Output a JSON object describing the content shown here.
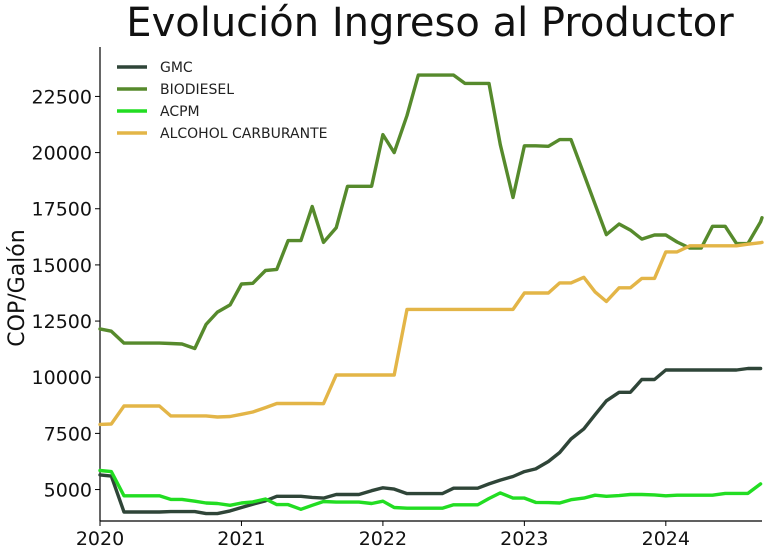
{
  "chart_data": {
    "type": "line",
    "title": "Evolución Ingreso al Productor",
    "xlabel": "",
    "ylabel": "COP/Galón",
    "xlim": [
      2020.0,
      2024.68
    ],
    "ylim": [
      3600,
      24700
    ],
    "x_ticks": [
      {
        "value": 2020,
        "label": "2020"
      },
      {
        "value": 2021,
        "label": "2021"
      },
      {
        "value": 2022,
        "label": "2022"
      },
      {
        "value": 2023,
        "label": "2023"
      },
      {
        "value": 2024,
        "label": "2024"
      }
    ],
    "y_ticks": [
      {
        "value": 5000,
        "label": "5000"
      },
      {
        "value": 7500,
        "label": "7500"
      },
      {
        "value": 10000,
        "label": "10000"
      },
      {
        "value": 12500,
        "label": "12500"
      },
      {
        "value": 15000,
        "label": "15000"
      },
      {
        "value": 17500,
        "label": "17500"
      },
      {
        "value": 20000,
        "label": "20000"
      },
      {
        "value": 22500,
        "label": "22500"
      }
    ],
    "grid": false,
    "legend_position": "top-left",
    "series": [
      {
        "name": "GMC",
        "color": "#2f4538",
        "points": [
          [
            2020.0,
            5650
          ],
          [
            2020.08,
            5600
          ],
          [
            2020.17,
            4000
          ],
          [
            2020.25,
            4000
          ],
          [
            2020.33,
            4000
          ],
          [
            2020.42,
            4000
          ],
          [
            2020.5,
            4020
          ],
          [
            2020.58,
            4020
          ],
          [
            2020.67,
            4020
          ],
          [
            2020.75,
            3930
          ],
          [
            2020.83,
            3930
          ],
          [
            2020.92,
            4050
          ],
          [
            2021.0,
            4200
          ],
          [
            2021.08,
            4350
          ],
          [
            2021.17,
            4500
          ],
          [
            2021.25,
            4700
          ],
          [
            2021.33,
            4700
          ],
          [
            2021.42,
            4700
          ],
          [
            2021.5,
            4650
          ],
          [
            2021.58,
            4620
          ],
          [
            2021.67,
            4780
          ],
          [
            2021.75,
            4780
          ],
          [
            2021.83,
            4780
          ],
          [
            2021.92,
            4950
          ],
          [
            2022.0,
            5080
          ],
          [
            2022.08,
            5020
          ],
          [
            2022.17,
            4820
          ],
          [
            2022.25,
            4820
          ],
          [
            2022.33,
            4820
          ],
          [
            2022.42,
            4820
          ],
          [
            2022.5,
            5060
          ],
          [
            2022.58,
            5060
          ],
          [
            2022.67,
            5060
          ],
          [
            2022.75,
            5250
          ],
          [
            2022.83,
            5420
          ],
          [
            2022.92,
            5580
          ],
          [
            2023.0,
            5800
          ],
          [
            2023.08,
            5920
          ],
          [
            2023.17,
            6250
          ],
          [
            2023.25,
            6650
          ],
          [
            2023.33,
            7250
          ],
          [
            2023.42,
            7700
          ],
          [
            2023.5,
            8330
          ],
          [
            2023.58,
            8950
          ],
          [
            2023.67,
            9330
          ],
          [
            2023.75,
            9330
          ],
          [
            2023.83,
            9900
          ],
          [
            2023.92,
            9900
          ],
          [
            2024.0,
            10320
          ],
          [
            2024.08,
            10320
          ],
          [
            2024.17,
            10320
          ],
          [
            2024.25,
            10320
          ],
          [
            2024.33,
            10320
          ],
          [
            2024.42,
            10320
          ],
          [
            2024.5,
            10320
          ],
          [
            2024.58,
            10390
          ],
          [
            2024.67,
            10390
          ]
        ]
      },
      {
        "name": "BIODIESEL",
        "color": "#568a2c",
        "points": [
          [
            2020.0,
            12150
          ],
          [
            2020.08,
            12050
          ],
          [
            2020.17,
            11520
          ],
          [
            2020.25,
            11520
          ],
          [
            2020.33,
            11520
          ],
          [
            2020.42,
            11520
          ],
          [
            2020.5,
            11500
          ],
          [
            2020.58,
            11480
          ],
          [
            2020.67,
            11280
          ],
          [
            2020.75,
            12350
          ],
          [
            2020.83,
            12900
          ],
          [
            2020.92,
            13220
          ],
          [
            2021.0,
            14150
          ],
          [
            2021.08,
            14180
          ],
          [
            2021.17,
            14750
          ],
          [
            2021.25,
            14800
          ],
          [
            2021.33,
            16080
          ],
          [
            2021.42,
            16080
          ],
          [
            2021.5,
            17600
          ],
          [
            2021.58,
            16000
          ],
          [
            2021.67,
            16650
          ],
          [
            2021.75,
            18500
          ],
          [
            2021.83,
            18500
          ],
          [
            2021.92,
            18500
          ],
          [
            2022.0,
            20800
          ],
          [
            2022.08,
            20000
          ],
          [
            2022.17,
            21650
          ],
          [
            2022.25,
            23450
          ],
          [
            2022.33,
            23450
          ],
          [
            2022.42,
            23450
          ],
          [
            2022.5,
            23450
          ],
          [
            2022.58,
            23080
          ],
          [
            2022.67,
            23080
          ],
          [
            2022.75,
            23080
          ],
          [
            2022.83,
            20350
          ],
          [
            2022.92,
            18000
          ],
          [
            2023.0,
            20300
          ],
          [
            2023.08,
            20300
          ],
          [
            2023.17,
            20280
          ],
          [
            2023.25,
            20580
          ],
          [
            2023.33,
            20580
          ],
          [
            2023.42,
            19050
          ],
          [
            2023.5,
            17700
          ],
          [
            2023.58,
            16350
          ],
          [
            2023.67,
            16820
          ],
          [
            2023.75,
            16550
          ],
          [
            2023.83,
            16150
          ],
          [
            2023.92,
            16330
          ],
          [
            2024.0,
            16330
          ],
          [
            2024.08,
            16020
          ],
          [
            2024.17,
            15750
          ],
          [
            2024.25,
            15750
          ],
          [
            2024.33,
            16720
          ],
          [
            2024.42,
            16720
          ],
          [
            2024.5,
            15950
          ],
          [
            2024.58,
            15950
          ],
          [
            2024.67,
            16920
          ],
          [
            2024.75,
            17100
          ]
        ]
      },
      {
        "name": "ACPM",
        "color": "#22dd22",
        "points": [
          [
            2020.0,
            5850
          ],
          [
            2020.08,
            5800
          ],
          [
            2020.17,
            4720
          ],
          [
            2020.25,
            4720
          ],
          [
            2020.33,
            4720
          ],
          [
            2020.42,
            4720
          ],
          [
            2020.5,
            4560
          ],
          [
            2020.58,
            4560
          ],
          [
            2020.67,
            4480
          ],
          [
            2020.75,
            4400
          ],
          [
            2020.83,
            4380
          ],
          [
            2020.92,
            4300
          ],
          [
            2021.0,
            4400
          ],
          [
            2021.08,
            4450
          ],
          [
            2021.17,
            4580
          ],
          [
            2021.25,
            4330
          ],
          [
            2021.33,
            4330
          ],
          [
            2021.42,
            4120
          ],
          [
            2021.5,
            4300
          ],
          [
            2021.58,
            4470
          ],
          [
            2021.67,
            4440
          ],
          [
            2021.75,
            4440
          ],
          [
            2021.83,
            4440
          ],
          [
            2021.92,
            4380
          ],
          [
            2022.0,
            4480
          ],
          [
            2022.08,
            4200
          ],
          [
            2022.17,
            4170
          ],
          [
            2022.25,
            4170
          ],
          [
            2022.33,
            4170
          ],
          [
            2022.42,
            4170
          ],
          [
            2022.5,
            4320
          ],
          [
            2022.58,
            4320
          ],
          [
            2022.67,
            4320
          ],
          [
            2022.75,
            4600
          ],
          [
            2022.83,
            4850
          ],
          [
            2022.92,
            4620
          ],
          [
            2023.0,
            4620
          ],
          [
            2023.08,
            4430
          ],
          [
            2023.17,
            4420
          ],
          [
            2023.25,
            4400
          ],
          [
            2023.33,
            4550
          ],
          [
            2023.42,
            4620
          ],
          [
            2023.5,
            4750
          ],
          [
            2023.58,
            4700
          ],
          [
            2023.67,
            4730
          ],
          [
            2023.75,
            4780
          ],
          [
            2023.83,
            4780
          ],
          [
            2023.92,
            4760
          ],
          [
            2024.0,
            4720
          ],
          [
            2024.08,
            4750
          ],
          [
            2024.17,
            4750
          ],
          [
            2024.25,
            4750
          ],
          [
            2024.33,
            4750
          ],
          [
            2024.42,
            4830
          ],
          [
            2024.5,
            4830
          ],
          [
            2024.58,
            4830
          ],
          [
            2024.67,
            5250
          ]
        ]
      },
      {
        "name": "ALCOHOL CARBURANTE",
        "color": "#e3b547",
        "points": [
          [
            2020.0,
            7900
          ],
          [
            2020.08,
            7920
          ],
          [
            2020.17,
            8720
          ],
          [
            2020.25,
            8720
          ],
          [
            2020.33,
            8720
          ],
          [
            2020.42,
            8720
          ],
          [
            2020.5,
            8280
          ],
          [
            2020.58,
            8280
          ],
          [
            2020.67,
            8280
          ],
          [
            2020.75,
            8280
          ],
          [
            2020.83,
            8230
          ],
          [
            2020.92,
            8250
          ],
          [
            2021.0,
            8350
          ],
          [
            2021.08,
            8450
          ],
          [
            2021.17,
            8650
          ],
          [
            2021.25,
            8830
          ],
          [
            2021.33,
            8830
          ],
          [
            2021.42,
            8830
          ],
          [
            2021.5,
            8830
          ],
          [
            2021.58,
            8820
          ],
          [
            2021.67,
            10100
          ],
          [
            2021.75,
            10100
          ],
          [
            2021.83,
            10100
          ],
          [
            2021.92,
            10100
          ],
          [
            2022.0,
            10100
          ],
          [
            2022.08,
            10100
          ],
          [
            2022.17,
            13020
          ],
          [
            2022.25,
            13020
          ],
          [
            2022.33,
            13020
          ],
          [
            2022.42,
            13020
          ],
          [
            2022.5,
            13020
          ],
          [
            2022.58,
            13020
          ],
          [
            2022.67,
            13020
          ],
          [
            2022.75,
            13020
          ],
          [
            2022.83,
            13020
          ],
          [
            2022.92,
            13020
          ],
          [
            2023.0,
            13750
          ],
          [
            2023.08,
            13750
          ],
          [
            2023.17,
            13750
          ],
          [
            2023.25,
            14200
          ],
          [
            2023.33,
            14200
          ],
          [
            2023.42,
            14450
          ],
          [
            2023.5,
            13800
          ],
          [
            2023.58,
            13370
          ],
          [
            2023.67,
            13980
          ],
          [
            2023.75,
            13980
          ],
          [
            2023.83,
            14400
          ],
          [
            2023.92,
            14400
          ],
          [
            2024.0,
            15580
          ],
          [
            2024.08,
            15580
          ],
          [
            2024.17,
            15850
          ],
          [
            2024.25,
            15850
          ],
          [
            2024.33,
            15850
          ],
          [
            2024.42,
            15850
          ],
          [
            2024.5,
            15850
          ],
          [
            2024.58,
            15920
          ],
          [
            2024.67,
            15990
          ],
          [
            2024.75,
            16000
          ]
        ]
      }
    ]
  }
}
